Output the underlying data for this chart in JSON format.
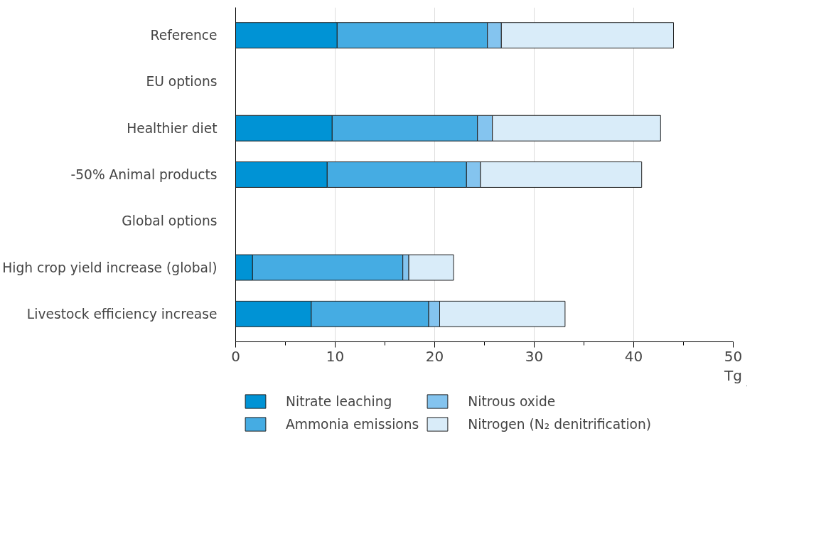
{
  "chart_data": {
    "type": "bar",
    "orientation": "horizontal",
    "stacked": true,
    "categories": [
      "Reference",
      "EU options",
      "Healthier diet",
      "-50% Animal products",
      "Global options",
      "High crop yield increase (global)",
      "Livestock efficiency increase"
    ],
    "series": [
      {
        "name": "Nitrate leaching",
        "color": "#0093d5",
        "values": [
          10.2,
          null,
          9.7,
          9.2,
          null,
          1.7,
          7.6
        ]
      },
      {
        "name": "Ammonia emissions",
        "color": "#45ace3",
        "values": [
          15.1,
          null,
          14.6,
          14.0,
          null,
          15.1,
          11.8
        ]
      },
      {
        "name": "Nitrous oxide",
        "color": "#84c4ef",
        "values": [
          1.4,
          null,
          1.5,
          1.4,
          null,
          0.6,
          1.1
        ]
      },
      {
        "name": "Nitrogen (N₂ denitrification)",
        "color": "#d9ecf9",
        "values": [
          17.3,
          null,
          16.9,
          16.2,
          null,
          4.5,
          12.6
        ]
      }
    ],
    "xlim": [
      0,
      50
    ],
    "xticks": [
      0,
      10,
      20,
      30,
      40,
      50
    ],
    "xlabel": "Tg",
    "grid": "x",
    "legend": "bottom"
  }
}
